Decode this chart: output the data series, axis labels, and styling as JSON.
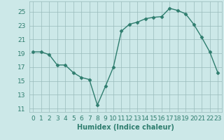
{
  "x": [
    0,
    1,
    2,
    3,
    4,
    5,
    6,
    7,
    8,
    9,
    10,
    11,
    12,
    13,
    14,
    15,
    16,
    17,
    18,
    19,
    20,
    21,
    22,
    23
  ],
  "y": [
    19.2,
    19.2,
    18.8,
    17.3,
    17.3,
    16.2,
    15.5,
    15.2,
    11.5,
    14.2,
    17.0,
    22.2,
    23.2,
    23.5,
    24.0,
    24.2,
    24.3,
    25.5,
    25.2,
    24.7,
    23.2,
    21.3,
    19.2,
    16.2
  ],
  "line_color": "#2e7d6e",
  "marker": "D",
  "markersize": 2.5,
  "linewidth": 1.0,
  "background_color": "#cce8e8",
  "grid_color": "#99bbbb",
  "xlabel": "Humidex (Indice chaleur)",
  "ylabel": "",
  "xlim": [
    -0.5,
    23.5
  ],
  "ylim": [
    10.5,
    26.5
  ],
  "xtick_labels": [
    "0",
    "1",
    "2",
    "3",
    "4",
    "5",
    "6",
    "7",
    "8",
    "9",
    "10",
    "11",
    "12",
    "13",
    "14",
    "15",
    "16",
    "17",
    "18",
    "19",
    "20",
    "21",
    "22",
    "23"
  ],
  "yticks": [
    11,
    13,
    15,
    17,
    19,
    21,
    23,
    25
  ],
  "xlabel_fontsize": 7,
  "tick_fontsize": 6.5
}
